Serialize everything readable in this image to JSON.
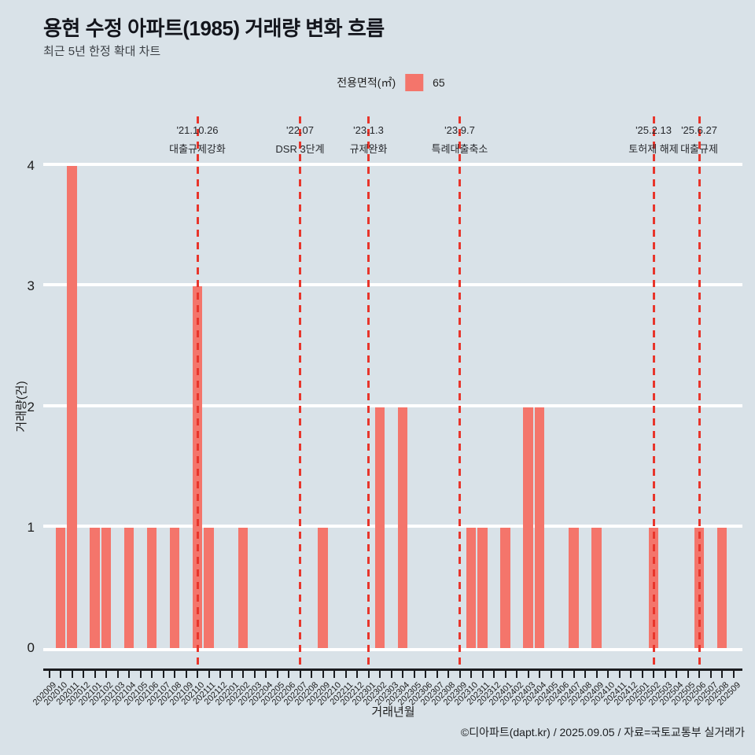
{
  "header": {
    "title": "용현 수정 아파트(1985) 거래량 변화 흐름",
    "subtitle": "최근 5년 한정 확대 차트"
  },
  "footer": {
    "credit": "©디아파트(dapt.kr) / 2025.09.05 / 자료=국토교통부 실거래가"
  },
  "chart_data": {
    "type": "bar",
    "title": "용현 수정 아파트(1985) 거래량 변화 흐름",
    "subtitle": "최근 5년 한정 확대 차트",
    "xlabel": "거래년월",
    "ylabel": "거래량(건)",
    "ylim": [
      0,
      4
    ],
    "yticks": [
      0,
      1,
      2,
      3,
      4
    ],
    "grid": "horizontal-white",
    "legend": {
      "label": "전용면적(㎡)",
      "series_name": "65",
      "position": "top-center"
    },
    "colors": {
      "bar": "#f4756b",
      "annotation_line": "#e8352b",
      "background": "#d9e2e8",
      "gridline": "#ffffff"
    },
    "categories": [
      "202009",
      "202010",
      "202011",
      "202012",
      "202101",
      "202102",
      "202103",
      "202104",
      "202105",
      "202106",
      "202107",
      "202108",
      "202109",
      "202110",
      "202111",
      "202112",
      "202201",
      "202202",
      "202203",
      "202204",
      "202205",
      "202206",
      "202207",
      "202208",
      "202209",
      "202210",
      "202211",
      "202212",
      "202301",
      "202302",
      "202303",
      "202304",
      "202305",
      "202306",
      "202307",
      "202308",
      "202309",
      "202310",
      "202311",
      "202312",
      "202401",
      "202402",
      "202403",
      "202404",
      "202405",
      "202406",
      "202407",
      "202408",
      "202409",
      "202410",
      "202411",
      "202412",
      "202501",
      "202502",
      "202503",
      "202504",
      "202505",
      "202506",
      "202507",
      "202508",
      "202509"
    ],
    "values": [
      0,
      1,
      4,
      0,
      1,
      1,
      0,
      1,
      0,
      1,
      0,
      1,
      0,
      3,
      1,
      0,
      0,
      1,
      0,
      0,
      0,
      0,
      0,
      0,
      1,
      0,
      0,
      0,
      0,
      2,
      0,
      2,
      0,
      0,
      0,
      0,
      0,
      1,
      1,
      0,
      1,
      0,
      2,
      2,
      0,
      0,
      1,
      0,
      1,
      0,
      0,
      0,
      0,
      1,
      0,
      0,
      0,
      1,
      0,
      1,
      0
    ],
    "annotations": [
      {
        "month": "202110",
        "date": "'21.10.26",
        "label": "대출규제강화"
      },
      {
        "month": "202207",
        "date": "'22.07",
        "label": "DSR 3단계"
      },
      {
        "month": "202301",
        "date": "'23.1.3",
        "label": "규제완화"
      },
      {
        "month": "202309",
        "date": "'23.9.7",
        "label": "특례대출축소"
      },
      {
        "month": "202502",
        "date": "'25.2.13",
        "label": "토허제 해제"
      },
      {
        "month": "202506",
        "date": "'25.6.27",
        "label": "대출규제"
      }
    ]
  }
}
